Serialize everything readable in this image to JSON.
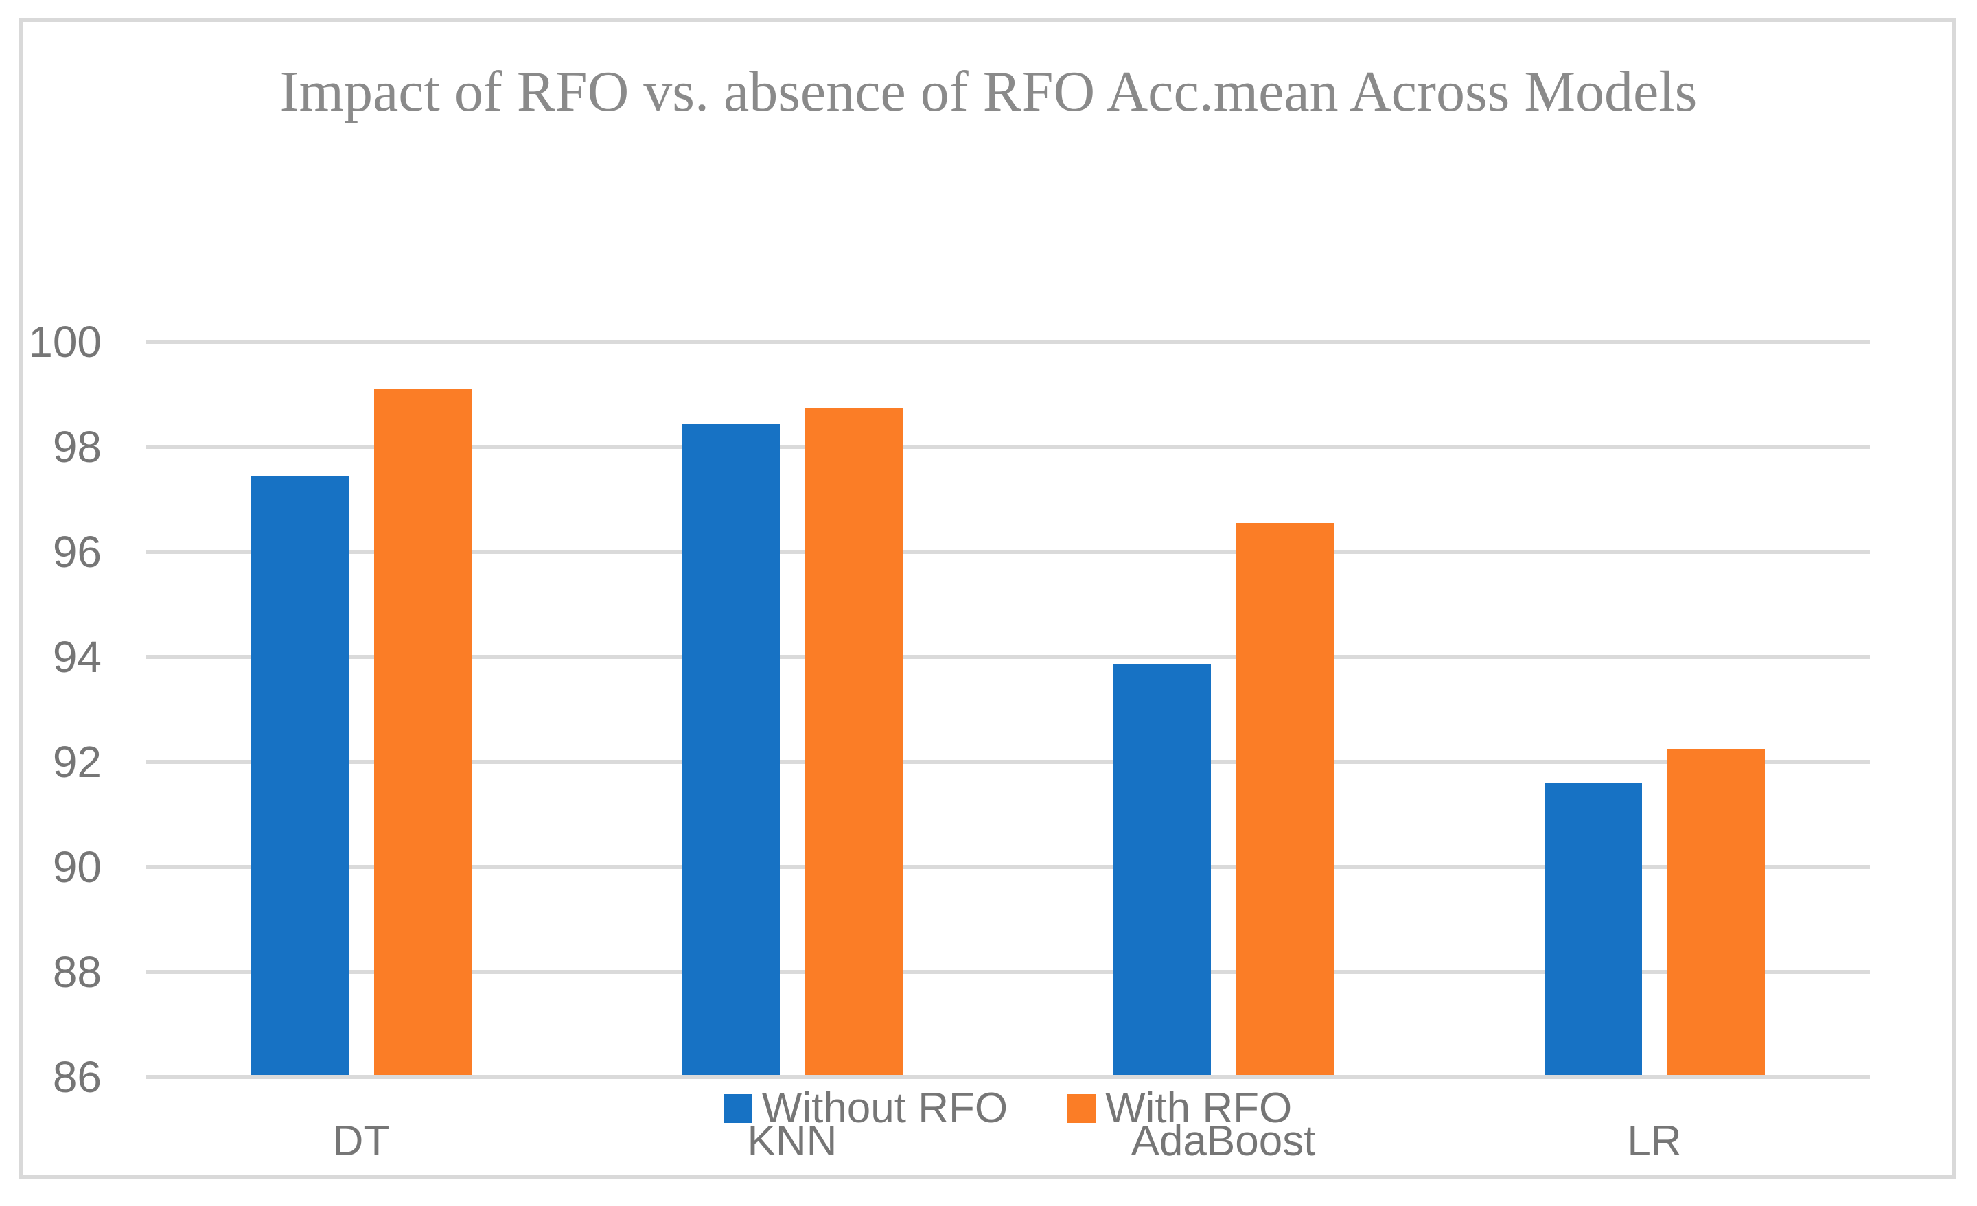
{
  "figure": {
    "border_color": "#D9D9D9",
    "background": "#ffffff"
  },
  "chart_data": {
    "type": "bar",
    "title": "Impact of RFO vs. absence of RFO Acc.mean Across Models",
    "title_color": "#8A8A8A",
    "categories": [
      "DT",
      "KNN",
      "AdaBoost",
      "LR"
    ],
    "series": [
      {
        "name": "Without RFO",
        "color": "#1772C4",
        "values": [
          97.45,
          98.45,
          93.85,
          91.6
        ]
      },
      {
        "name": "With RFO",
        "color": "#FB7D26",
        "values": [
          99.1,
          98.75,
          96.55,
          92.25
        ]
      }
    ],
    "xlabel": "",
    "ylabel": "",
    "ylim": [
      86,
      100
    ],
    "yticks": [
      86,
      88,
      90,
      92,
      94,
      96,
      98,
      100
    ],
    "grid": "horizontal",
    "gridline_color": "#DADADA",
    "tick_label_color": "#767676",
    "legend_position": "bottom-center"
  }
}
